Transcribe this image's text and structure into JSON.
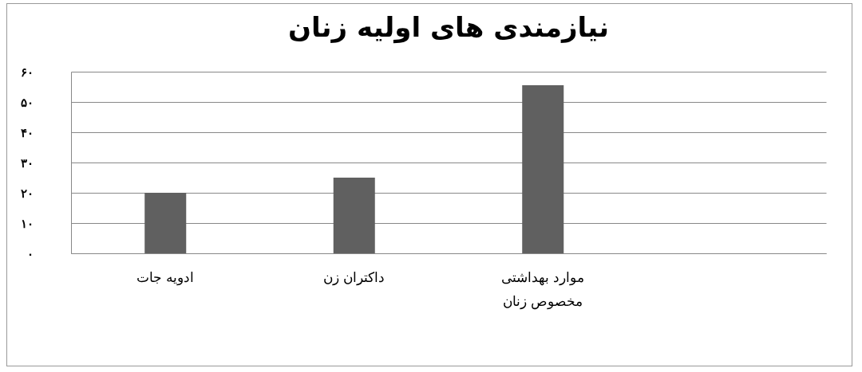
{
  "chart_data": {
    "type": "bar",
    "title": "نیازمندی های اولیه زنان",
    "categories": [
      "ادویه جات",
      "داکتران زن",
      "موارد بهداشتی مخصوص زنان",
      null
    ],
    "values": [
      20,
      25,
      55.5,
      null
    ],
    "color": "#606060",
    "ylim": [
      0,
      60
    ],
    "yticks": [
      {
        "value": 0,
        "label": "۰"
      },
      {
        "value": 10,
        "label": "۱۰"
      },
      {
        "value": 20,
        "label": "۲۰"
      },
      {
        "value": 30,
        "label": "۳۰"
      },
      {
        "value": 40,
        "label": "۴۰"
      },
      {
        "value": 50,
        "label": "۵۰"
      },
      {
        "value": 60,
        "label": "۶۰"
      }
    ],
    "grid": "y"
  }
}
